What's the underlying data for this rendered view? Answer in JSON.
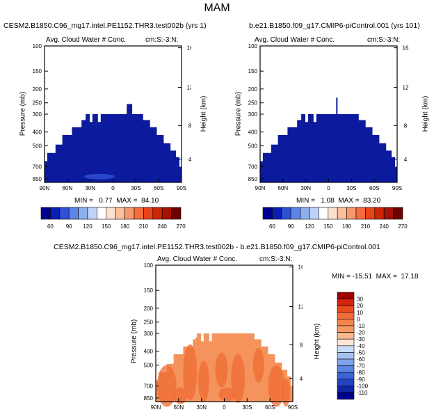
{
  "page_title": "MAM",
  "colors": {
    "blue": "#0c1a9e",
    "orange_fill": "#f4945c",
    "orange_dark": "#ef6c34"
  },
  "chart_data": [
    {
      "type": "heatmap",
      "case_title": "CESM2.B1850.C96_mg17.intel.PE1152.THR3.test002b (yrs 1)",
      "subtitle": "Avg. Cloud Water # Conc.",
      "region": "cm:S:-3:N:",
      "ylabel_left": "Pressure (mb)",
      "ylabel_right": "Height (km)",
      "x_ticks": [
        "90N",
        "60N",
        "30N",
        "0",
        "30S",
        "60S",
        "90S"
      ],
      "y_ticks": [
        "100",
        "150",
        "200",
        "250",
        "300",
        "400",
        "500",
        "700",
        "850"
      ],
      "height_ticks": [
        "16",
        "12",
        "8",
        "4"
      ],
      "stats": "MIN =   0.77  MAX =  84.10",
      "colorbar_labels": [
        "60",
        "90",
        "120",
        "150",
        "180",
        "210",
        "240",
        "270"
      ],
      "colorbar_colors": [
        "#00008f",
        "#0a1fb4",
        "#2f51d2",
        "#5b85e6",
        "#8eaef0",
        "#bfd3f8",
        "#ffffff",
        "#fde0cd",
        "#fbbf9b",
        "#f7986b",
        "#f36d3f",
        "#e94317",
        "#cc2605",
        "#a31204",
        "#6e0000"
      ],
      "cloud_level_top_mb": 300,
      "cloud_fill": "#0c1a9e"
    },
    {
      "type": "heatmap",
      "case_title": "b.e21.B1850.f09_g17.CMIP6-piControl.001 (yrs 101)",
      "subtitle": "Avg. Cloud Water # Conc.",
      "region": "cm:S:-3:N:",
      "ylabel_left": "Pressure (mb)",
      "ylabel_right": "Height (km)",
      "x_ticks": [
        "90N",
        "60N",
        "30N",
        "0",
        "30S",
        "60S",
        "90S"
      ],
      "y_ticks": [
        "100",
        "150",
        "200",
        "250",
        "300",
        "400",
        "500",
        "700",
        "850"
      ],
      "height_ticks": [
        "16",
        "12",
        "8",
        "4"
      ],
      "stats": "MIN =   1.08  MAX =  83.20",
      "colorbar_labels": [
        "60",
        "90",
        "120",
        "150",
        "180",
        "210",
        "240",
        "270"
      ],
      "colorbar_colors": [
        "#00008f",
        "#0a1fb4",
        "#2f51d2",
        "#5b85e6",
        "#8eaef0",
        "#bfd3f8",
        "#ffffff",
        "#fde0cd",
        "#fbbf9b",
        "#f7986b",
        "#f36d3f",
        "#e94317",
        "#cc2605",
        "#a31204",
        "#6e0000"
      ],
      "cloud_level_top_mb": 300,
      "cloud_fill": "#0c1a9e"
    },
    {
      "type": "heatmap",
      "case_title": "CESM2.B1850.C96_mg17.intel.PE1152.THR3.test002b - b.e21.B1850.f09_g17.CMIP6-piControl.001",
      "subtitle": "Avg. Cloud Water # Conc.",
      "region": "cm:S:-3:N:",
      "ylabel_left": "Pressure (mb)",
      "ylabel_right": "Height (km)",
      "x_ticks": [
        "90N",
        "60N",
        "30N",
        "0",
        "30S",
        "60S",
        "90S"
      ],
      "y_ticks": [
        "100",
        "150",
        "200",
        "250",
        "300",
        "400",
        "500",
        "700",
        "850"
      ],
      "height_ticks": [
        "16",
        "12",
        "8",
        "4"
      ],
      "stats": "MIN = -15.51  MAX =  17.18",
      "colorbar_labels": [
        "30",
        "20",
        "10",
        "0",
        "-10",
        "-20",
        "-30",
        "-40",
        "-50",
        "-60",
        "-70",
        "-80",
        "-90",
        "-100",
        "-110"
      ],
      "colorbar_colors": [
        "#a00000",
        "#d3230c",
        "#ea4a1b",
        "#f36b37",
        "#f5844c",
        "#f59a64",
        "#f7b78c",
        "#fde6d6",
        "#c7dcf7",
        "#a4c2f2",
        "#7ca3ea",
        "#5b85e2",
        "#3a63d6",
        "#2444c4",
        "#0f25a6",
        "#00008f"
      ],
      "cloud_level_top_mb": 300,
      "cloud_fill": "#f4945c"
    }
  ]
}
